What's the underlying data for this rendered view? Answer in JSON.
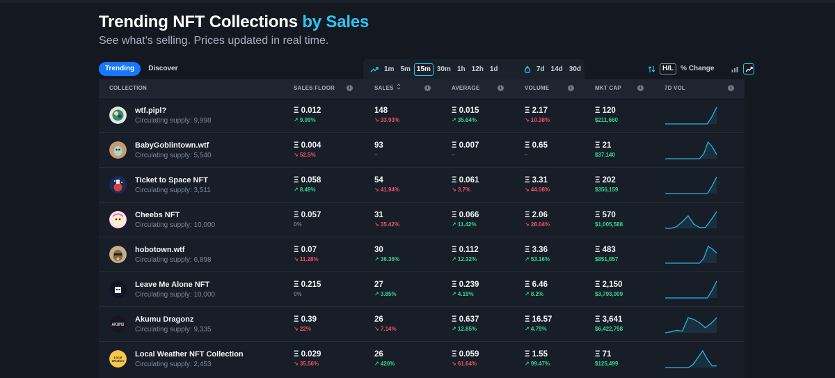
{
  "header": {
    "title_main": "Trending NFT Collections",
    "title_accent": "by Sales",
    "subtitle": "See what's selling. Prices updated in real time."
  },
  "view_tabs": [
    {
      "label": "Trending",
      "active": true
    },
    {
      "label": "Discover",
      "active": false
    }
  ],
  "time_filters": {
    "trending_icon": "trending-up-icon",
    "short": [
      {
        "label": "1m",
        "active": false
      },
      {
        "label": "5m",
        "active": false
      },
      {
        "label": "15m",
        "active": true
      },
      {
        "label": "30m",
        "active": false
      },
      {
        "label": "1h",
        "active": false
      },
      {
        "label": "12h",
        "active": false
      },
      {
        "label": "1d",
        "active": false
      }
    ],
    "hot_icon": "flame-icon",
    "long": [
      {
        "label": "7d",
        "active": false
      },
      {
        "label": "14d",
        "active": false
      },
      {
        "label": "30d",
        "active": false
      }
    ]
  },
  "display_controls": {
    "swap_icon": "swap-arrows-icon",
    "hl_label": "H/L",
    "pct_label": "% Change",
    "bar_chart_icon": "bar-chart-icon",
    "line_chart_icon": "line-chart-icon"
  },
  "table": {
    "columns": {
      "collection": "COLLECTION",
      "floor": "SALES FLOOR",
      "sales": "SALES",
      "average": "AVERAGE",
      "volume": "VOLUME",
      "mktcap": "MKT CAP",
      "vol7d": "7D VOL"
    },
    "supply_label": "Circulating supply:",
    "rows": [
      {
        "name": "wtf.pipl?",
        "supply": "9,998",
        "floor": "Ξ 0.012",
        "floor_chg": "↗ 9.09%",
        "floor_dir": "up",
        "sales": "148",
        "sales_chg": "↘ 33.93%",
        "sales_dir": "down",
        "avg": "Ξ 0.015",
        "avg_chg": "↗ 35.64%",
        "avg_dir": "up",
        "vol": "Ξ 2.17",
        "vol_chg": "↘ 10.38%",
        "vol_dir": "down",
        "mcap": "Ξ 120",
        "mcap_usd": "$211,660",
        "spark": [
          0,
          0,
          0,
          0,
          0,
          0,
          0,
          0,
          0,
          0,
          0.45,
          1
        ]
      },
      {
        "name": "BabyGoblintown.wtf",
        "supply": "5,540",
        "floor": "Ξ 0.004",
        "floor_chg": "↘ 52.5%",
        "floor_dir": "down",
        "sales": "93",
        "sales_chg": "–",
        "sales_dir": "neutral",
        "avg": "Ξ 0.007",
        "avg_chg": "–",
        "avg_dir": "neutral",
        "vol": "Ξ 0.65",
        "vol_chg": "–",
        "vol_dir": "neutral",
        "mcap": "Ξ 21",
        "mcap_usd": "$37,140",
        "spark": [
          0,
          0,
          0,
          0,
          0,
          0,
          0,
          0,
          0,
          0.3,
          1,
          0.7,
          0.25
        ]
      },
      {
        "name": "Ticket to Space NFT",
        "supply": "3,511",
        "floor": "Ξ 0.058",
        "floor_chg": "↗ 8.49%",
        "floor_dir": "up",
        "sales": "54",
        "sales_chg": "↘ 41.94%",
        "sales_dir": "down",
        "avg": "Ξ 0.061",
        "avg_chg": "↘ 3.7%",
        "avg_dir": "down",
        "vol": "Ξ 3.31",
        "vol_chg": "↘ 44.08%",
        "vol_dir": "down",
        "mcap": "Ξ 202",
        "mcap_usd": "$356,159",
        "spark": [
          0,
          0,
          0,
          0,
          0,
          0,
          0,
          0,
          0,
          0,
          0.45,
          1
        ]
      },
      {
        "name": "Cheebs NFT",
        "supply": "10,000",
        "floor": "Ξ 0.057",
        "floor_chg": "0%",
        "floor_dir": "neutral",
        "sales": "31",
        "sales_chg": "↘ 35.42%",
        "sales_dir": "down",
        "avg": "Ξ 0.066",
        "avg_chg": "↗ 11.42%",
        "avg_dir": "up",
        "vol": "Ξ 2.06",
        "vol_chg": "↘ 28.04%",
        "vol_dir": "down",
        "mcap": "Ξ 570",
        "mcap_usd": "$1,005,588",
        "spark": [
          0,
          0,
          0.1,
          0.4,
          0.75,
          0.25,
          0.05,
          0.05,
          0.5,
          1
        ]
      },
      {
        "name": "hobotown.wtf",
        "supply": "6,898",
        "floor": "Ξ 0.07",
        "floor_chg": "↘ 11.28%",
        "floor_dir": "down",
        "sales": "30",
        "sales_chg": "↗ 36.36%",
        "sales_dir": "up",
        "avg": "Ξ 0.112",
        "avg_chg": "↗ 12.32%",
        "avg_dir": "up",
        "vol": "Ξ 3.36",
        "vol_chg": "↗ 53.16%",
        "vol_dir": "up",
        "mcap": "Ξ 483",
        "mcap_usd": "$851,857",
        "spark": [
          0,
          0,
          0,
          0,
          0,
          0,
          0,
          0,
          0,
          0.3,
          1,
          0.85,
          0.6
        ]
      },
      {
        "name": "Leave Me Alone NFT",
        "supply": "10,000",
        "floor": "Ξ 0.215",
        "floor_chg": "0%",
        "floor_dir": "neutral",
        "sales": "27",
        "sales_chg": "↗ 3.85%",
        "sales_dir": "up",
        "avg": "Ξ 0.239",
        "avg_chg": "↗ 4.19%",
        "avg_dir": "up",
        "vol": "Ξ 6.46",
        "vol_chg": "↗ 8.2%",
        "vol_dir": "up",
        "mcap": "Ξ 2,150",
        "mcap_usd": "$3,793,009",
        "spark": [
          0,
          0,
          0,
          0,
          0,
          0,
          0,
          0,
          0,
          0,
          0.45,
          1
        ]
      },
      {
        "name": "Akumu Dragonz",
        "supply": "9,335",
        "floor": "Ξ 0.39",
        "floor_chg": "↘ 22%",
        "floor_dir": "down",
        "sales": "26",
        "sales_chg": "↘ 7.14%",
        "sales_dir": "down",
        "avg": "Ξ 0.637",
        "avg_chg": "↗ 12.85%",
        "avg_dir": "up",
        "vol": "Ξ 16.57",
        "vol_chg": "↗ 4.79%",
        "vol_dir": "up",
        "mcap": "Ξ 3,641",
        "mcap_usd": "$6,422,798",
        "spark": [
          0,
          0.05,
          0.15,
          0.1,
          0.9,
          0.8,
          0.6,
          0.3,
          0.55,
          0.9
        ]
      },
      {
        "name": "Local Weather NFT Collection",
        "supply": "2,453",
        "floor": "Ξ 0.029",
        "floor_chg": "↘ 35.56%",
        "floor_dir": "down",
        "sales": "26",
        "sales_chg": "↗ 420%",
        "sales_dir": "up",
        "avg": "Ξ 0.059",
        "avg_chg": "↘ 61.64%",
        "avg_dir": "down",
        "vol": "Ξ 1.55",
        "vol_chg": "↗ 99.47%",
        "vol_dir": "up",
        "mcap": "Ξ 71",
        "mcap_usd": "$125,499",
        "spark": [
          0,
          0,
          0,
          0,
          0,
          0,
          0.2,
          0.6,
          1,
          0.5,
          0.1,
          0.1
        ]
      }
    ]
  },
  "colors": {
    "accent": "#2cc6f2",
    "tab_active": "#1677ff",
    "positive": "#35d69a",
    "negative": "#f0506e",
    "spark": "#2bb4e6"
  }
}
